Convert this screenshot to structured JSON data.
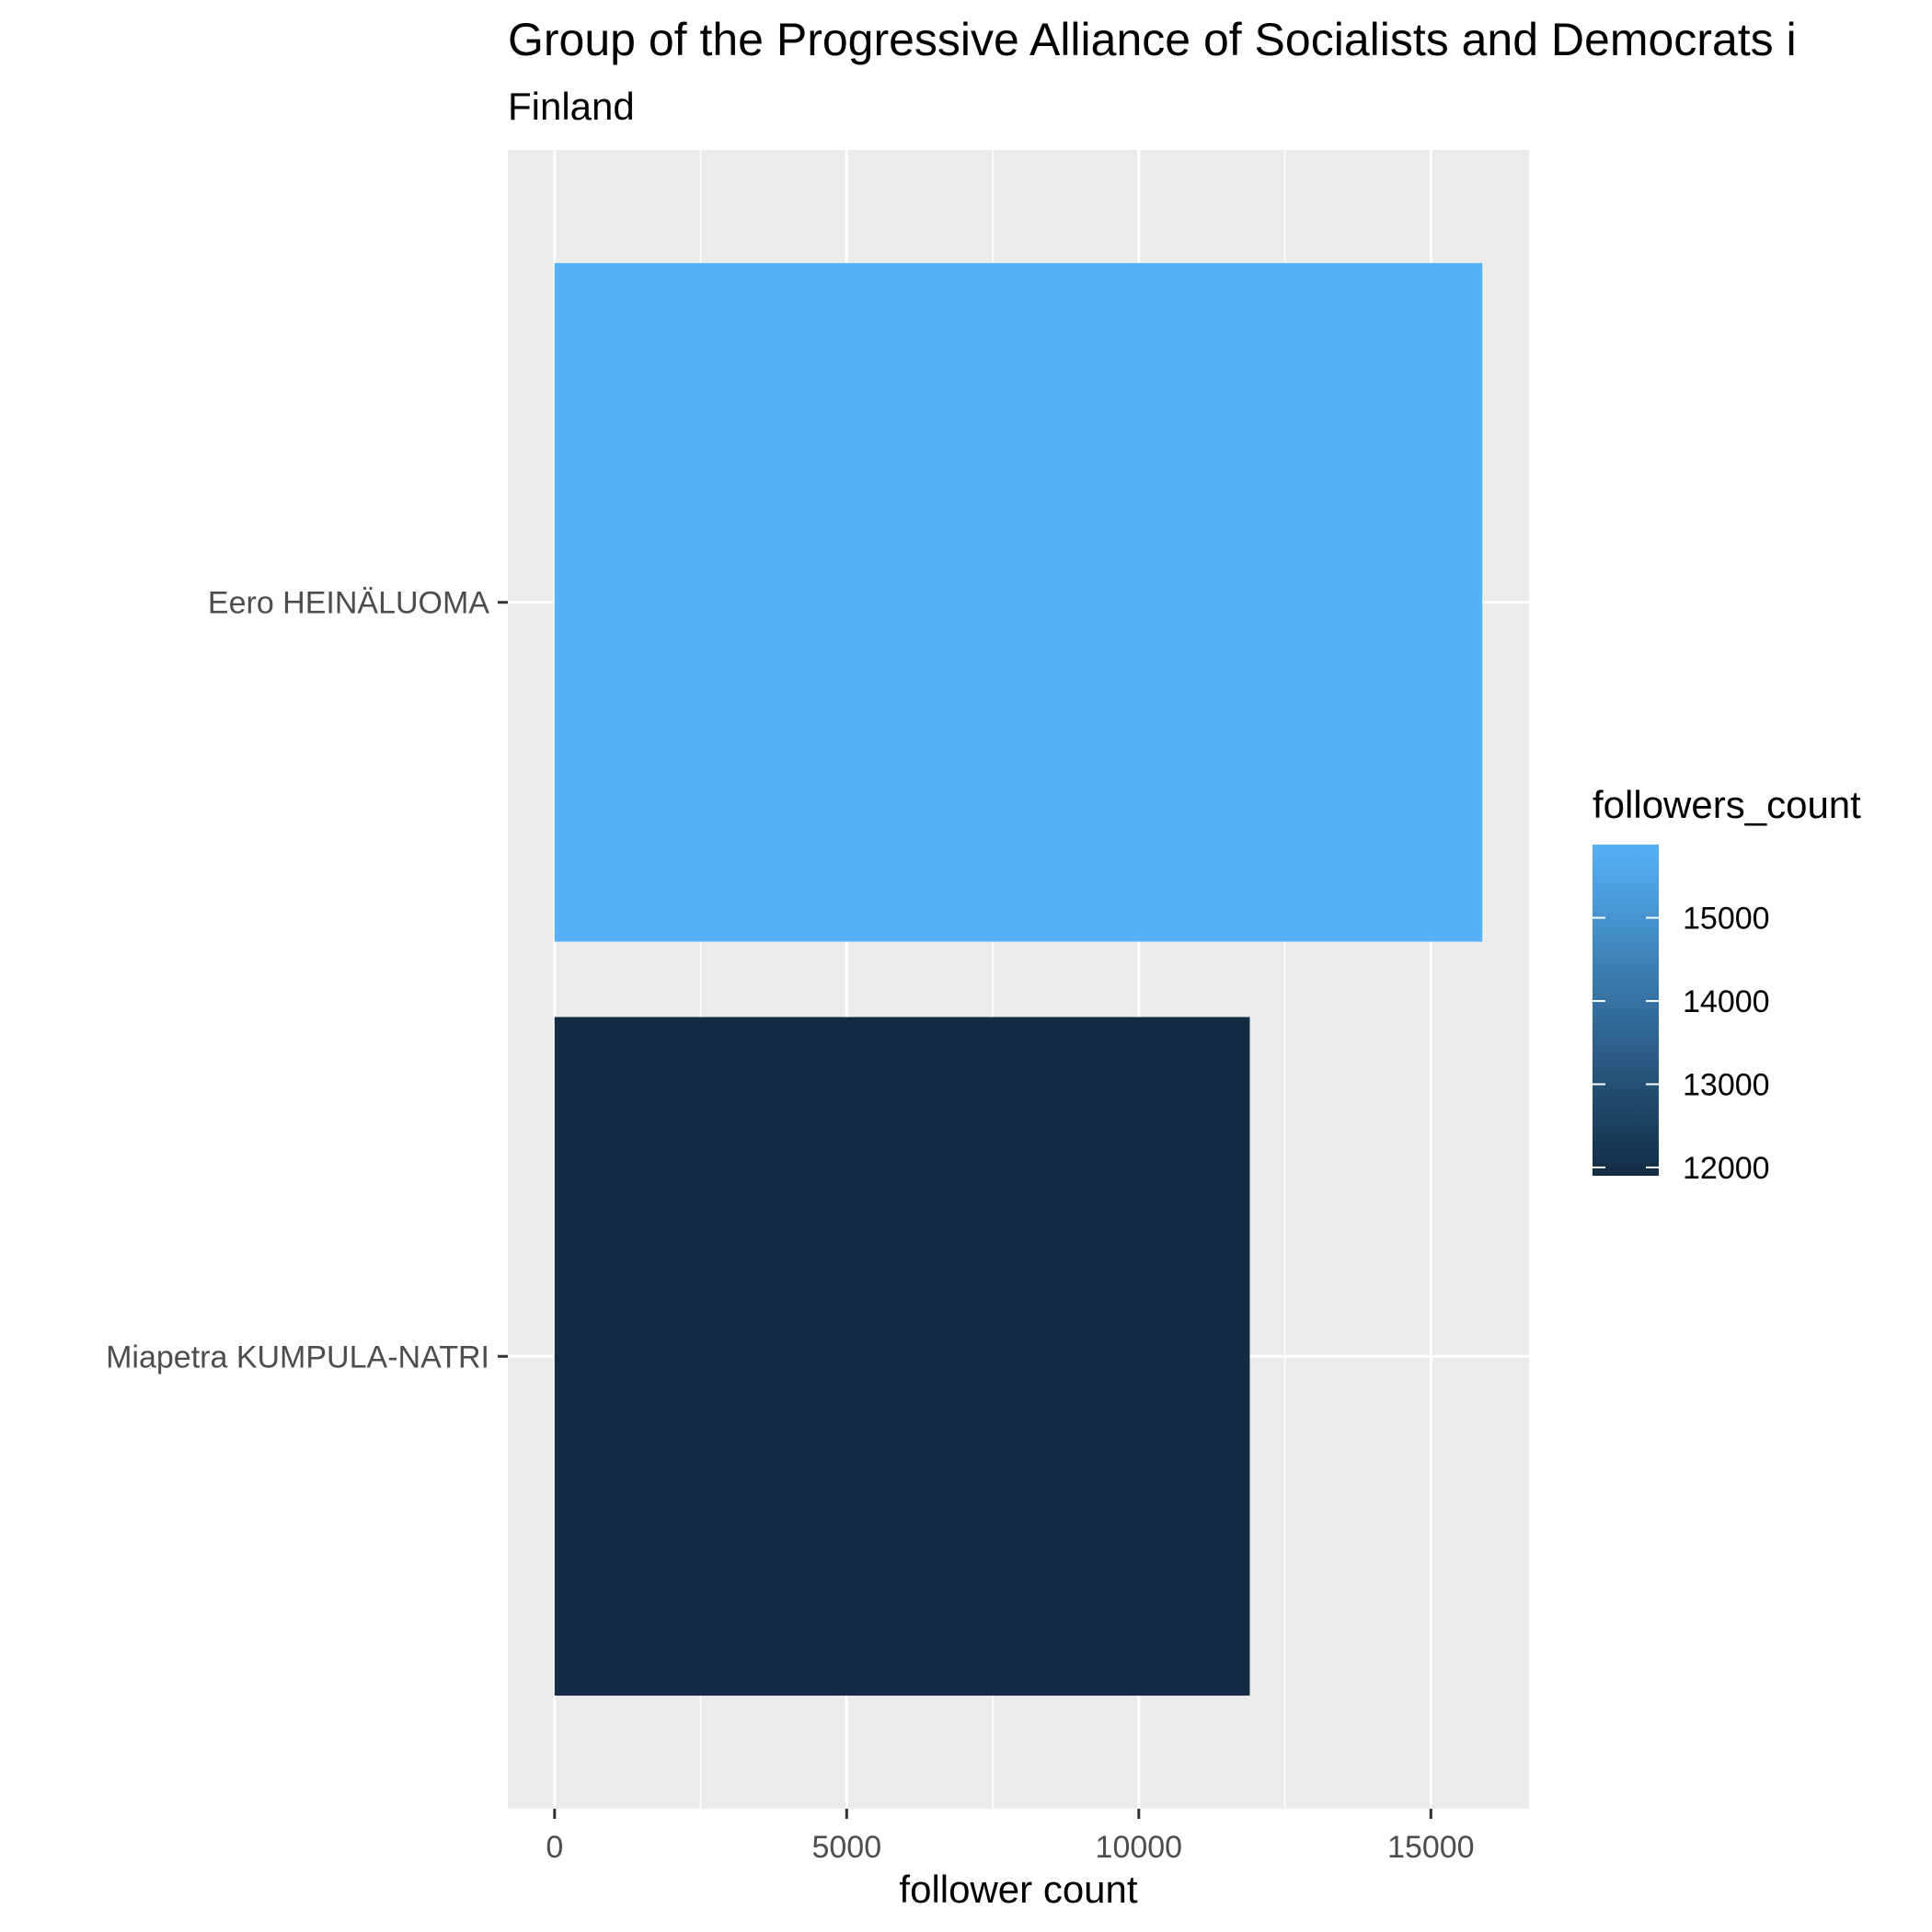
{
  "chart_data": {
    "type": "bar",
    "orientation": "horizontal",
    "title": "Group of the Progressive Alliance of Socialists and Democrats i",
    "subtitle": "Finland",
    "xlabel": "follower count",
    "ylabel": "",
    "categories": [
      "Eero HEINÄLUOMA",
      "Miapetra KUMPULA-NATRI"
    ],
    "values": [
      15880,
      11900
    ],
    "xlim": [
      -800,
      16680
    ],
    "x_ticks": [
      0,
      5000,
      10000,
      15000
    ],
    "x_tick_labels": [
      "0",
      "5000",
      "10000",
      "15000"
    ],
    "grid": true,
    "legend": {
      "title": "followers_count",
      "position": "right",
      "range": [
        11900,
        15880
      ],
      "ticks": [
        12000,
        13000,
        14000,
        15000
      ],
      "tick_labels": [
        "12000",
        "13000",
        "14000",
        "15000"
      ],
      "color_low": "#132B43",
      "color_high": "#56B1F7"
    },
    "colors": {
      "panel_background": "#EBEBEB",
      "grid_line": "#FFFFFF",
      "axis_text": "#4D4D4D"
    }
  }
}
